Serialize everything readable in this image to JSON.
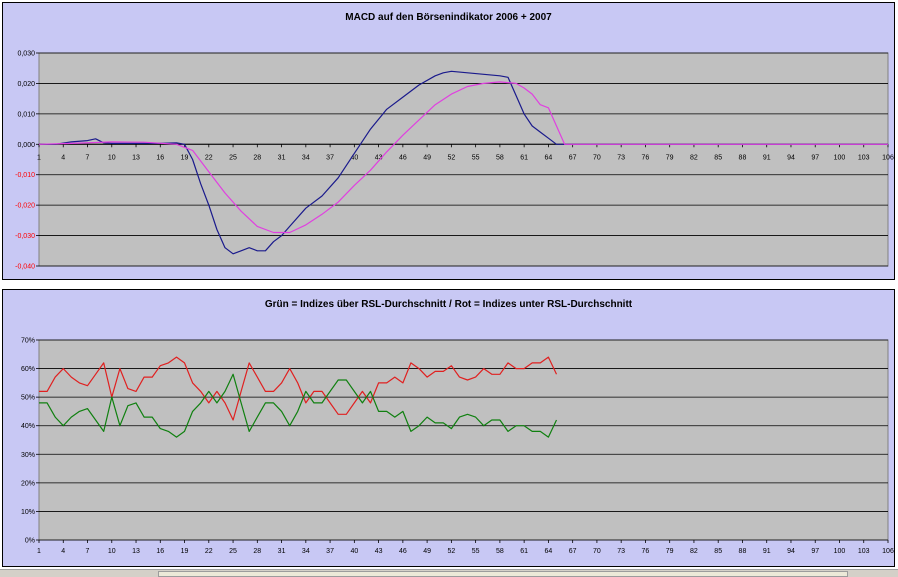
{
  "chart_data": [
    {
      "type": "line",
      "title": "MACD auf den Börsenindikator 2006 + 2007",
      "x_tick_labels": [
        "1",
        "4",
        "7",
        "10",
        "13",
        "16",
        "19",
        "22",
        "25",
        "28",
        "31",
        "34",
        "37",
        "40",
        "43",
        "46",
        "49",
        "52",
        "55",
        "58",
        "61",
        "64",
        "67",
        "70",
        "73",
        "76",
        "79",
        "82",
        "85",
        "88",
        "91",
        "94",
        "97",
        "100",
        "103",
        "106"
      ],
      "xlim": [
        1,
        106
      ],
      "ylim": [
        -0.04,
        0.03
      ],
      "y_ticks": [
        0.03,
        0.02,
        0.01,
        0,
        -0.01,
        -0.02,
        -0.03,
        -0.04
      ],
      "y_tick_labels": [
        "0,030",
        "0,020",
        "0,010",
        "0,000",
        "-0,010",
        "-0,020",
        "-0,030",
        "-0,040"
      ],
      "grid": true,
      "series": [
        {
          "color": "#1a1a8c",
          "x": [
            1,
            3,
            5,
            7,
            8,
            9,
            10,
            12,
            14,
            16,
            18,
            19,
            20,
            21,
            22,
            23,
            24,
            25,
            26,
            27,
            28,
            29,
            30,
            31,
            32,
            34,
            36,
            38,
            40,
            42,
            44,
            46,
            48,
            50,
            51,
            52,
            54,
            56,
            58,
            59,
            60,
            61,
            62,
            63,
            64,
            65,
            66,
            70,
            80,
            90,
            100,
            106
          ],
          "y": [
            0,
            0,
            0.0008,
            0.0012,
            0.0018,
            0.0005,
            0.0003,
            0.0003,
            0.0003,
            0.0003,
            0.0005,
            0,
            -0.005,
            -0.013,
            -0.02,
            -0.028,
            -0.034,
            -0.036,
            -0.035,
            -0.034,
            -0.035,
            -0.035,
            -0.032,
            -0.03,
            -0.027,
            -0.021,
            -0.017,
            -0.011,
            -0.003,
            0.005,
            0.0115,
            0.0155,
            0.0195,
            0.0225,
            0.0235,
            0.024,
            0.0235,
            0.023,
            0.0225,
            0.022,
            0.016,
            0.01,
            0.006,
            0.004,
            0.002,
            0,
            0,
            0,
            0,
            0,
            0,
            0
          ]
        },
        {
          "color": "#e040e0",
          "x": [
            1,
            5,
            8,
            10,
            14,
            18,
            20,
            22,
            24,
            26,
            28,
            30,
            32,
            34,
            36,
            38,
            40,
            42,
            44,
            46,
            48,
            50,
            52,
            54,
            56,
            58,
            60,
            61,
            62,
            63,
            64,
            65,
            66,
            70,
            80,
            90,
            100,
            106
          ],
          "y": [
            0,
            0.0003,
            0.0006,
            0.0008,
            0.0007,
            0,
            -0.002,
            -0.009,
            -0.016,
            -0.022,
            -0.027,
            -0.029,
            -0.029,
            -0.0265,
            -0.023,
            -0.019,
            -0.0135,
            -0.0085,
            -0.0025,
            0.003,
            0.008,
            0.013,
            0.0165,
            0.019,
            0.02,
            0.0205,
            0.02,
            0.0185,
            0.0165,
            0.013,
            0.012,
            0.006,
            0,
            0,
            0,
            0,
            0,
            0
          ]
        }
      ]
    },
    {
      "type": "line",
      "title": "Grün = Indizes über RSL-Durchschnitt / Rot = Indizes unter RSL-Durchschnitt",
      "x_tick_labels": [
        "1",
        "4",
        "7",
        "10",
        "13",
        "16",
        "19",
        "22",
        "25",
        "28",
        "31",
        "34",
        "37",
        "40",
        "43",
        "46",
        "49",
        "52",
        "55",
        "58",
        "61",
        "64",
        "67",
        "70",
        "73",
        "76",
        "79",
        "82",
        "85",
        "88",
        "91",
        "94",
        "97",
        "100",
        "103",
        "106"
      ],
      "xlim": [
        1,
        106
      ],
      "ylim": [
        0,
        70
      ],
      "y_ticks": [
        70,
        60,
        50,
        40,
        30,
        20,
        10,
        0
      ],
      "y_tick_labels": [
        "70%",
        "60%",
        "50%",
        "40%",
        "30%",
        "20%",
        "10%",
        "0%"
      ],
      "grid": true,
      "series": [
        {
          "color": "#e02020",
          "x": [
            1,
            2,
            3,
            4,
            5,
            6,
            7,
            8,
            9,
            10,
            11,
            12,
            13,
            14,
            15,
            16,
            17,
            18,
            19,
            20,
            21,
            22,
            23,
            24,
            25,
            26,
            27,
            28,
            29,
            30,
            31,
            32,
            33,
            34,
            35,
            36,
            37,
            38,
            39,
            40,
            41,
            42,
            43,
            44,
            45,
            46,
            47,
            48,
            49,
            50,
            51,
            52,
            53,
            54,
            55,
            56,
            57,
            58,
            59,
            60,
            61,
            62,
            63,
            64,
            65
          ],
          "y": [
            52,
            52,
            57,
            60,
            57,
            55,
            54,
            58,
            62,
            50,
            60,
            53,
            52,
            57,
            57,
            61,
            62,
            64,
            62,
            55,
            52,
            48,
            52,
            48,
            42,
            52,
            62,
            57,
            52,
            52,
            55,
            60,
            55,
            48,
            52,
            52,
            48,
            44,
            44,
            48,
            52,
            48,
            55,
            55,
            57,
            55,
            62,
            60,
            57,
            59,
            59,
            61,
            57,
            56,
            57,
            60,
            58,
            58,
            62,
            60,
            60,
            62,
            62,
            64,
            58
          ]
        },
        {
          "color": "#108010",
          "x": [
            1,
            2,
            3,
            4,
            5,
            6,
            7,
            8,
            9,
            10,
            11,
            12,
            13,
            14,
            15,
            16,
            17,
            18,
            19,
            20,
            21,
            22,
            23,
            24,
            25,
            26,
            27,
            28,
            29,
            30,
            31,
            32,
            33,
            34,
            35,
            36,
            37,
            38,
            39,
            40,
            41,
            42,
            43,
            44,
            45,
            46,
            47,
            48,
            49,
            50,
            51,
            52,
            53,
            54,
            55,
            56,
            57,
            58,
            59,
            60,
            61,
            62,
            63,
            64,
            65
          ],
          "y": [
            48,
            48,
            43,
            40,
            43,
            45,
            46,
            42,
            38,
            50,
            40,
            47,
            48,
            43,
            43,
            39,
            38,
            36,
            38,
            45,
            48,
            52,
            48,
            52,
            58,
            48,
            38,
            43,
            48,
            48,
            45,
            40,
            45,
            52,
            48,
            48,
            52,
            56,
            56,
            52,
            48,
            52,
            45,
            45,
            43,
            45,
            38,
            40,
            43,
            41,
            41,
            39,
            43,
            44,
            43,
            40,
            42,
            42,
            38,
            40,
            40,
            38,
            38,
            36,
            42
          ]
        }
      ]
    }
  ]
}
